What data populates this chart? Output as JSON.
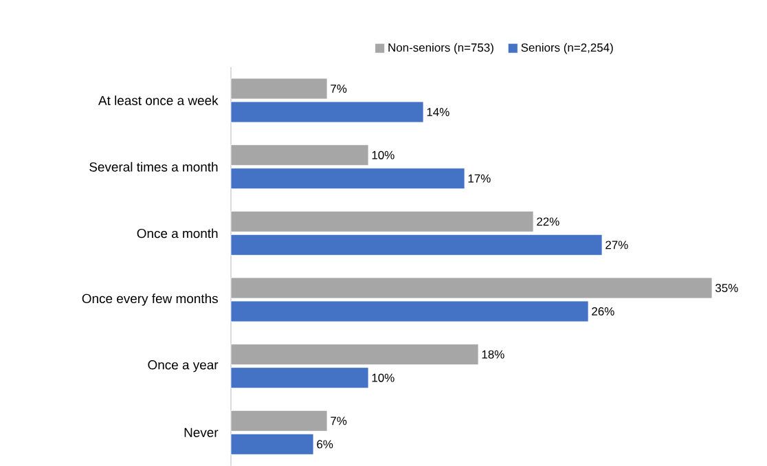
{
  "chart_data": {
    "type": "bar",
    "orientation": "horizontal",
    "legend": "top",
    "categories": [
      "At least once a week",
      "Several times a month",
      "Once a month",
      "Once every few months",
      "Once a year",
      "Never"
    ],
    "series": [
      {
        "name": "Non-seniors (n=753)",
        "color": "#a6a6a6",
        "values": [
          7,
          10,
          22,
          35,
          18,
          7
        ],
        "value_labels": [
          "7%",
          "10%",
          "22%",
          "35%",
          "18%",
          "7%"
        ]
      },
      {
        "name": "Seniors (n=2,254)",
        "color": "#4472c4",
        "values": [
          14,
          17,
          27,
          26,
          10,
          6
        ],
        "value_labels": [
          "14%",
          "17%",
          "27%",
          "26%",
          "10%",
          "6%"
        ]
      }
    ]
  }
}
